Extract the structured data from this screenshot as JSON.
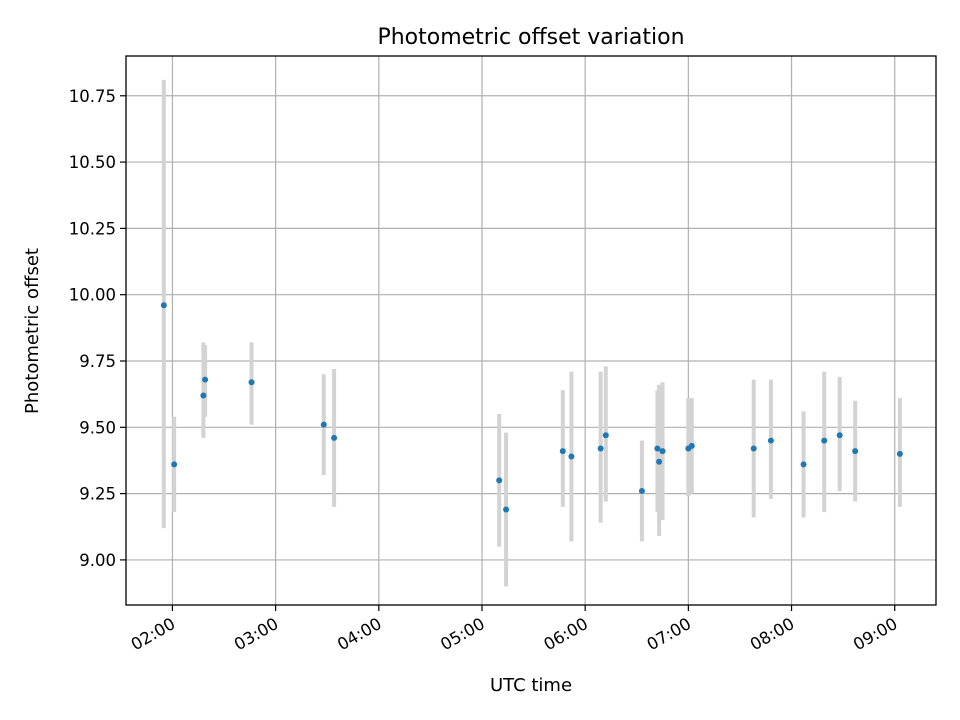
{
  "chart_data": {
    "type": "scatter",
    "title": "Photometric offset variation",
    "xlabel": "UTC time",
    "ylabel": "Photometric offset",
    "xlim": [
      "01:33",
      "09:24"
    ],
    "ylim": [
      8.83,
      10.9
    ],
    "x_ticks": [
      "02:00",
      "03:00",
      "04:00",
      "05:00",
      "06:00",
      "07:00",
      "08:00",
      "09:00"
    ],
    "y_ticks": [
      9.0,
      9.25,
      9.5,
      9.75,
      10.0,
      10.25,
      10.5,
      10.75
    ],
    "grid": true,
    "point_color": "#1f77b4",
    "errorbar_color": "#d3d3d3",
    "points": [
      {
        "time": "01:55",
        "offset": 9.96,
        "err_low": 9.12,
        "err_high": 10.81
      },
      {
        "time": "02:01",
        "offset": 9.36,
        "err_low": 9.18,
        "err_high": 9.54
      },
      {
        "time": "02:18",
        "offset": 9.62,
        "err_low": 9.46,
        "err_high": 9.82
      },
      {
        "time": "02:19",
        "offset": 9.68,
        "err_low": 9.54,
        "err_high": 9.81
      },
      {
        "time": "02:46",
        "offset": 9.67,
        "err_low": 9.51,
        "err_high": 9.82
      },
      {
        "time": "03:28",
        "offset": 9.51,
        "err_low": 9.32,
        "err_high": 9.7
      },
      {
        "time": "03:34",
        "offset": 9.46,
        "err_low": 9.2,
        "err_high": 9.72
      },
      {
        "time": "05:10",
        "offset": 9.3,
        "err_low": 9.05,
        "err_high": 9.55
      },
      {
        "time": "05:14",
        "offset": 9.19,
        "err_low": 8.9,
        "err_high": 9.48
      },
      {
        "time": "05:47",
        "offset": 9.41,
        "err_low": 9.2,
        "err_high": 9.64
      },
      {
        "time": "05:52",
        "offset": 9.39,
        "err_low": 9.07,
        "err_high": 9.71
      },
      {
        "time": "06:09",
        "offset": 9.42,
        "err_low": 9.14,
        "err_high": 9.71
      },
      {
        "time": "06:12",
        "offset": 9.47,
        "err_low": 9.22,
        "err_high": 9.73
      },
      {
        "time": "06:33",
        "offset": 9.26,
        "err_low": 9.07,
        "err_high": 9.45
      },
      {
        "time": "06:42",
        "offset": 9.42,
        "err_low": 9.18,
        "err_high": 9.64
      },
      {
        "time": "06:43",
        "offset": 9.37,
        "err_low": 9.09,
        "err_high": 9.66
      },
      {
        "time": "06:45",
        "offset": 9.41,
        "err_low": 9.15,
        "err_high": 9.67
      },
      {
        "time": "07:00",
        "offset": 9.42,
        "err_low": 9.24,
        "err_high": 9.61
      },
      {
        "time": "07:02",
        "offset": 9.43,
        "err_low": 9.25,
        "err_high": 9.61
      },
      {
        "time": "07:38",
        "offset": 9.42,
        "err_low": 9.16,
        "err_high": 9.68
      },
      {
        "time": "07:48",
        "offset": 9.45,
        "err_low": 9.23,
        "err_high": 9.68
      },
      {
        "time": "08:07",
        "offset": 9.36,
        "err_low": 9.16,
        "err_high": 9.56
      },
      {
        "time": "08:19",
        "offset": 9.45,
        "err_low": 9.18,
        "err_high": 9.71
      },
      {
        "time": "08:28",
        "offset": 9.47,
        "err_low": 9.26,
        "err_high": 9.69
      },
      {
        "time": "08:37",
        "offset": 9.41,
        "err_low": 9.22,
        "err_high": 9.6
      },
      {
        "time": "09:03",
        "offset": 9.4,
        "err_low": 9.2,
        "err_high": 9.61
      }
    ]
  }
}
